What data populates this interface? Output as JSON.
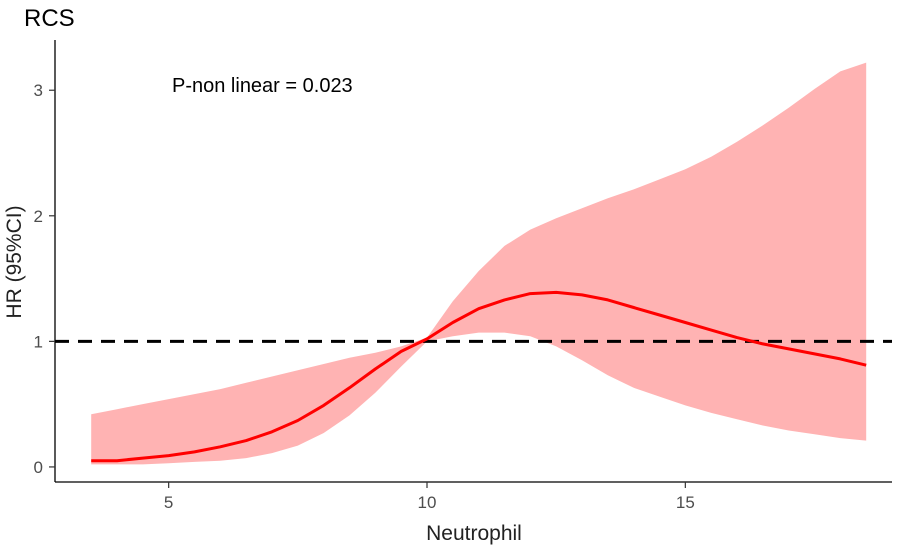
{
  "chart_data": {
    "type": "line",
    "title": "RCS",
    "xlabel": "Neutrophil",
    "ylabel": "HR (95%CI)",
    "annotation": "P-non linear = 0.023",
    "xlim": [
      2.8,
      19.0
    ],
    "ylim": [
      -0.12,
      3.4
    ],
    "x_ticks": [
      5,
      10,
      15
    ],
    "y_ticks": [
      0,
      1,
      2,
      3
    ],
    "reference_line": {
      "y": 1,
      "style": "dashed",
      "color": "#000000"
    },
    "grid": false,
    "series": [
      {
        "color": "#ff0000",
        "band_color": "#ffb3b3",
        "x": [
          3.5,
          4.0,
          4.5,
          5.0,
          5.5,
          6.0,
          6.5,
          7.0,
          7.5,
          8.0,
          8.5,
          9.0,
          9.5,
          10.0,
          10.5,
          11.0,
          11.5,
          12.0,
          12.5,
          13.0,
          13.5,
          14.0,
          14.5,
          15.0,
          15.5,
          16.0,
          16.5,
          17.0,
          17.5,
          18.0,
          18.5
        ],
        "y": [
          0.05,
          0.05,
          0.07,
          0.09,
          0.12,
          0.16,
          0.21,
          0.28,
          0.37,
          0.49,
          0.63,
          0.78,
          0.92,
          1.02,
          1.15,
          1.26,
          1.33,
          1.38,
          1.39,
          1.37,
          1.33,
          1.27,
          1.21,
          1.15,
          1.09,
          1.03,
          0.98,
          0.94,
          0.9,
          0.86,
          0.81
        ],
        "lower": [
          0.02,
          0.02,
          0.02,
          0.03,
          0.04,
          0.05,
          0.07,
          0.11,
          0.17,
          0.27,
          0.41,
          0.59,
          0.8,
          1.0,
          1.04,
          1.07,
          1.07,
          1.04,
          0.96,
          0.85,
          0.73,
          0.63,
          0.56,
          0.49,
          0.43,
          0.38,
          0.33,
          0.29,
          0.26,
          0.23,
          0.21
        ],
        "upper": [
          0.42,
          0.46,
          0.5,
          0.54,
          0.58,
          0.62,
          0.67,
          0.72,
          0.77,
          0.82,
          0.87,
          0.91,
          0.96,
          1.03,
          1.32,
          1.56,
          1.76,
          1.89,
          1.98,
          2.06,
          2.14,
          2.21,
          2.29,
          2.37,
          2.47,
          2.59,
          2.72,
          2.86,
          3.01,
          3.15,
          3.22
        ]
      }
    ]
  }
}
